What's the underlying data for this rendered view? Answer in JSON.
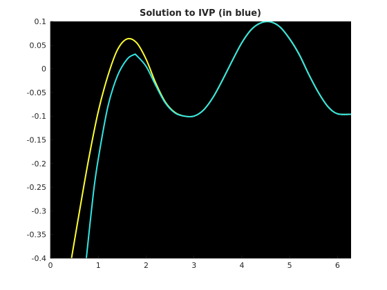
{
  "chart_data": {
    "type": "line",
    "title": "Solution to IVP (in blue)",
    "xlabel": "",
    "ylabel": "",
    "xlim": [
      0,
      6.283
    ],
    "ylim": [
      -0.4,
      0.1
    ],
    "x_ticks": [
      "0",
      "1",
      "2",
      "3",
      "4",
      "5",
      "6"
    ],
    "x_tick_values": [
      0,
      1,
      2,
      3,
      4,
      5,
      6
    ],
    "y_ticks": [
      "0.1",
      "0.05",
      "0",
      "-0.05",
      "-0.1",
      "-0.15",
      "-0.2",
      "-0.25",
      "-0.3",
      "-0.35",
      "-0.4"
    ],
    "y_tick_values": [
      0.1,
      0.05,
      0,
      -0.05,
      -0.1,
      -0.15,
      -0.2,
      -0.25,
      -0.3,
      -0.35,
      -0.4
    ],
    "grid": false,
    "background_color": "#000000",
    "series": [
      {
        "color": "#ffff33",
        "x": [
          0.44,
          0.6,
          0.8,
          1.0,
          1.2,
          1.4,
          1.6,
          1.8,
          2.0,
          2.2,
          2.4,
          2.6,
          2.8,
          3.0,
          3.2,
          3.4,
          3.6,
          3.8,
          4.0,
          4.2,
          4.4,
          4.6,
          4.8,
          5.0,
          5.2,
          5.4,
          5.6,
          5.8,
          6.0,
          6.283
        ],
        "y": [
          -0.4,
          -0.305,
          -0.19,
          -0.09,
          -0.015,
          0.04,
          0.063,
          0.055,
          0.02,
          -0.03,
          -0.07,
          -0.092,
          -0.1,
          -0.1,
          -0.087,
          -0.06,
          -0.023,
          0.017,
          0.055,
          0.083,
          0.097,
          0.099,
          0.088,
          0.063,
          0.03,
          -0.012,
          -0.05,
          -0.08,
          -0.095,
          -0.096
        ]
      },
      {
        "color": "#33e6e6",
        "x": [
          0.75,
          0.9,
          1.0,
          1.2,
          1.4,
          1.6,
          1.75,
          1.8,
          2.0,
          2.2,
          2.4,
          2.6,
          2.8,
          3.0,
          3.2,
          3.4,
          3.6,
          3.8,
          4.0,
          4.2,
          4.4,
          4.6,
          4.8,
          5.0,
          5.2,
          5.4,
          5.6,
          5.8,
          6.0,
          6.283
        ],
        "y": [
          -0.4,
          -0.26,
          -0.19,
          -0.08,
          -0.015,
          0.02,
          0.03,
          0.028,
          0.005,
          -0.035,
          -0.072,
          -0.093,
          -0.1,
          -0.1,
          -0.087,
          -0.06,
          -0.023,
          0.017,
          0.055,
          0.083,
          0.097,
          0.099,
          0.088,
          0.063,
          0.03,
          -0.012,
          -0.05,
          -0.08,
          -0.095,
          -0.096
        ]
      }
    ]
  }
}
